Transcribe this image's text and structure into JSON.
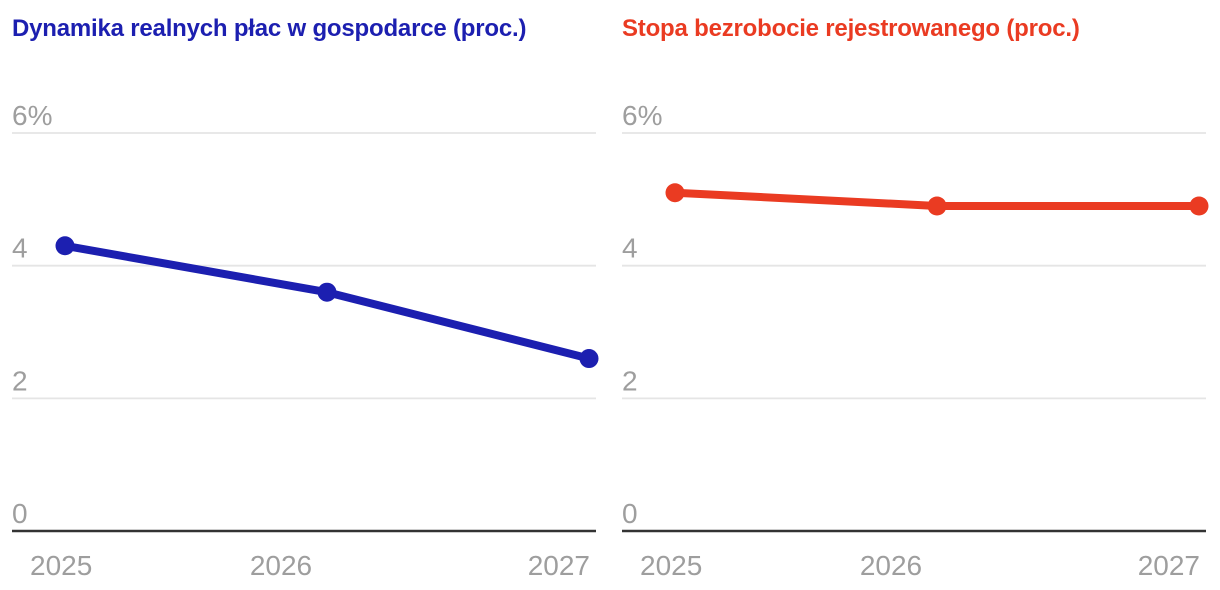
{
  "styles": {
    "background": "#ffffff",
    "tick_label_color": "#9e9e9e",
    "grid_color": "#e5e5e5",
    "axis_color": "#333333"
  },
  "chart_data": [
    {
      "type": "line",
      "title": "Dynamika realnych płac w gospodarce (proc.)",
      "color": "#1c1fb0",
      "categories": [
        "2025",
        "2026",
        "2027"
      ],
      "values": [
        4.3,
        3.6,
        2.6
      ],
      "y_ticks": [
        {
          "value": 6,
          "label": "6%"
        },
        {
          "value": 4,
          "label": "4"
        },
        {
          "value": 2,
          "label": "2"
        },
        {
          "value": 0,
          "label": "0"
        }
      ],
      "ylim": [
        0,
        6.6
      ],
      "grid": true,
      "legend": "none",
      "marker": "circle"
    },
    {
      "type": "line",
      "title": "Stopa bezrobocie rejestrowanego (proc.)",
      "color": "#ea3b22",
      "categories": [
        "2025",
        "2026",
        "2027"
      ],
      "values": [
        5.1,
        4.9,
        4.9
      ],
      "y_ticks": [
        {
          "value": 6,
          "label": "6%"
        },
        {
          "value": 4,
          "label": "4"
        },
        {
          "value": 2,
          "label": "2"
        },
        {
          "value": 0,
          "label": "0"
        }
      ],
      "ylim": [
        0,
        6.6
      ],
      "grid": true,
      "legend": "none",
      "marker": "circle"
    }
  ]
}
